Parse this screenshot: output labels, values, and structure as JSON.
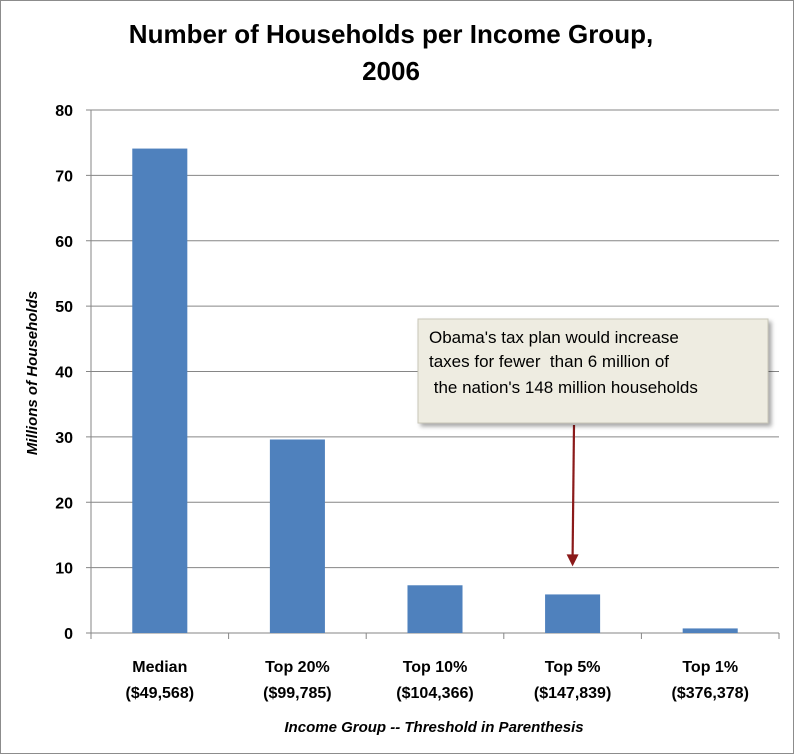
{
  "chart_data": {
    "type": "bar",
    "title_lines": [
      "Number of Households per Income Group,",
      "2006"
    ],
    "xlabel": "Income Group -- Threshold in Parenthesis",
    "ylabel": "Millions of Households",
    "ylim": [
      0,
      80
    ],
    "yticks": [
      0,
      10,
      20,
      30,
      40,
      50,
      60,
      70,
      80
    ],
    "grid": true,
    "categories": [
      {
        "line1": "Median",
        "line2": "($49,568)"
      },
      {
        "line1": "Top 20%",
        "line2": "($99,785)"
      },
      {
        "line1": "Top 10%",
        "line2": "($104,366)"
      },
      {
        "line1": "Top 5%",
        "line2": "($147,839)"
      },
      {
        "line1": "Top 1%",
        "line2": "($376,378)"
      }
    ],
    "values": [
      74.1,
      29.6,
      7.3,
      5.9,
      0.7
    ],
    "bar_color": "#4f81bd",
    "annotation": {
      "lines": [
        "Obama's tax plan would increase",
        "taxes for fewer  than 6 million of",
        " the nation's 148 million households"
      ],
      "points_to_category": 3,
      "box_color": "#eeece1",
      "arrow_color": "#8b1a1a"
    }
  }
}
